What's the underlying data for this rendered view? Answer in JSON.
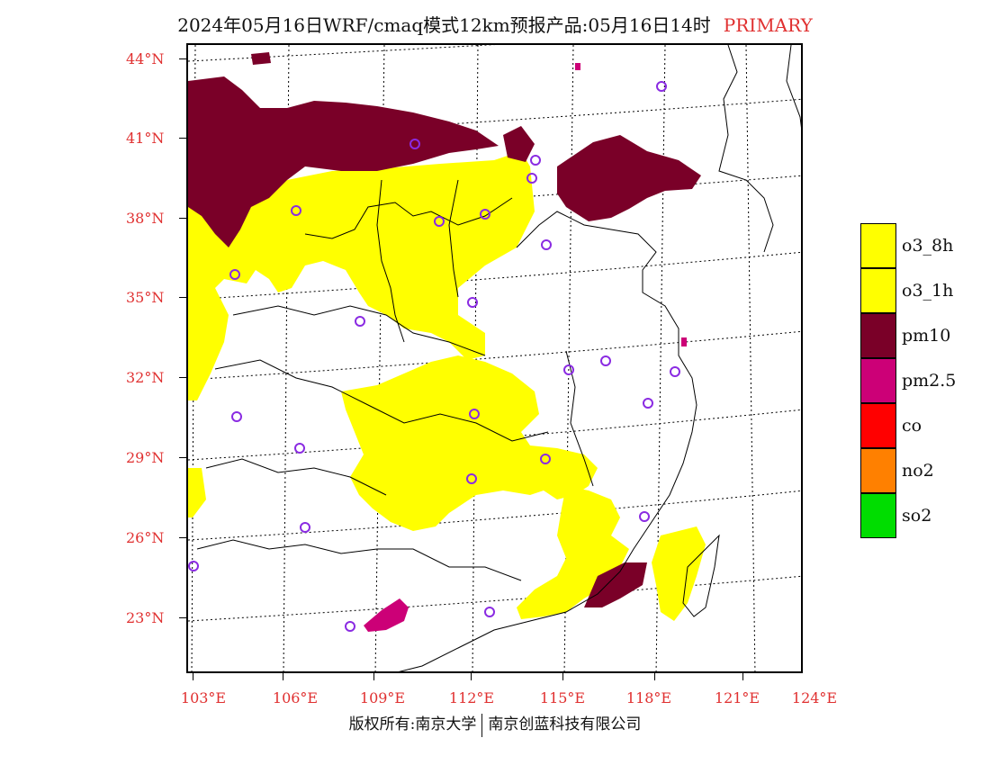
{
  "title": {
    "main": "2024年05月16日WRF/cmaq模式12km预报产品:05月16日14时",
    "tag": "PRIMARY"
  },
  "latitude_labels": [
    "44°N",
    "41°N",
    "38°N",
    "35°N",
    "32°N",
    "29°N",
    "26°N",
    "23°N"
  ],
  "longitude_labels": [
    "103°E",
    "106°E",
    "109°E",
    "112°E",
    "115°E",
    "118°E",
    "121°E",
    "124°E"
  ],
  "legend": [
    {
      "label": "o3_8h",
      "color": "#ffff00"
    },
    {
      "label": "o3_1h",
      "color": "#ffff00"
    },
    {
      "label": "pm10",
      "color": "#7a0028"
    },
    {
      "label": "pm2.5",
      "color": "#cc0077"
    },
    {
      "label": "co",
      "color": "#ff0000"
    },
    {
      "label": "no2",
      "color": "#ff8000"
    },
    {
      "label": "so2",
      "color": "#00dd00"
    }
  ],
  "copyright": {
    "left": "版权所有:南京大学",
    "right": "南京创蓝科技有限公司"
  },
  "colors": {
    "ozone": "#ffff00",
    "pm10": "#7a0028",
    "pm25": "#cc0077",
    "station_marker": "#8a2be2",
    "axis_label": "#e03030"
  }
}
